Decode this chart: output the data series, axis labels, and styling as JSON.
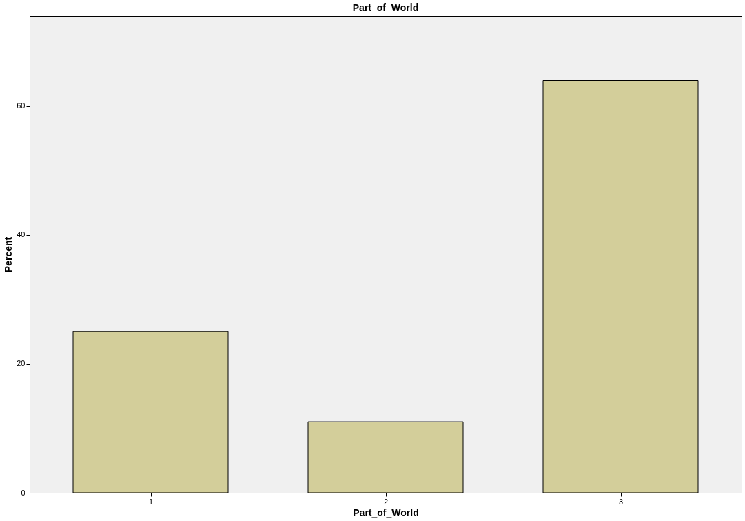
{
  "chart_data": {
    "type": "bar",
    "title": "Part_of_World",
    "xlabel": "Part_of_World",
    "ylabel": "Percent",
    "categories": [
      "1",
      "2",
      "3"
    ],
    "values": [
      25,
      11,
      64
    ],
    "color": "#d3ce9a",
    "ylim": [
      0,
      74
    ],
    "yticks": [
      0,
      20,
      40,
      60
    ],
    "grid": false
  }
}
